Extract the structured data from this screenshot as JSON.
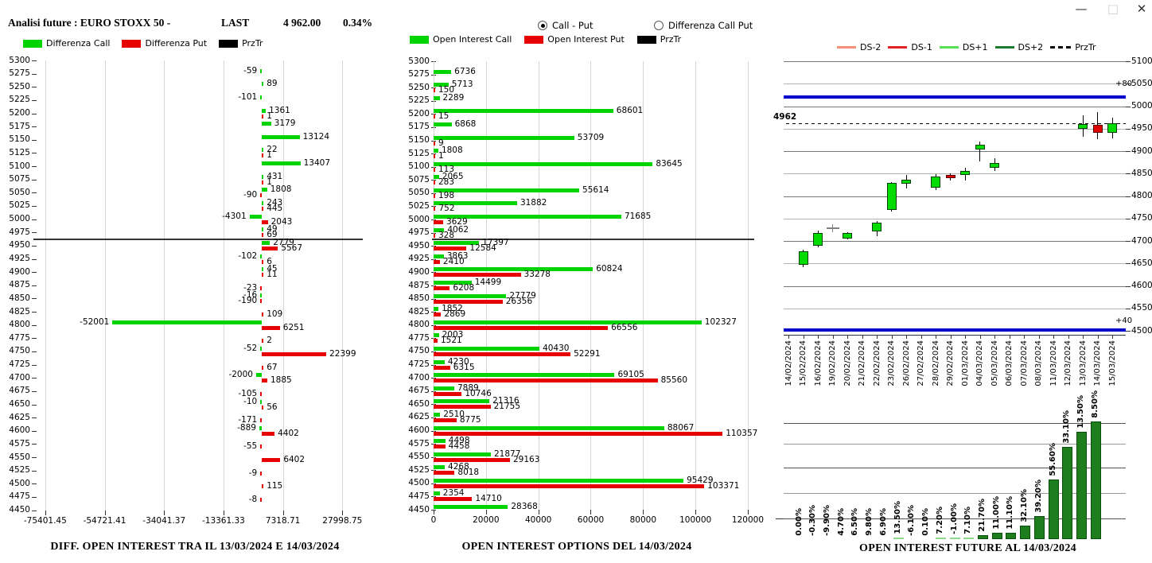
{
  "window": {
    "minimize_glyph": "—",
    "maximize_glyph": "□",
    "close_glyph": "✕"
  },
  "header": {
    "title": "Analisi future : EURO STOXX 50 -",
    "last_label": "LAST",
    "last_value": "4 962.00",
    "change_pct": "0.34%"
  },
  "view_options": {
    "options": [
      {
        "label": "Call - Put",
        "selected": true
      },
      {
        "label": "Differenza Call Put",
        "selected": false
      }
    ]
  },
  "colors": {
    "call_green": "#00d400",
    "put_red": "#e60000",
    "przt_black": "#000000",
    "future_bar_green": "#1e7e1e",
    "future_bar_border": "#0b4d0b",
    "future_bar_small_green": "#8fd98f",
    "blue_level_line": "#0000cc",
    "ds_minus2": "#f4907a",
    "ds_minus1": "#e02222",
    "ds_plus1": "#55e055",
    "ds_plus2": "#1e7a2e",
    "candle_up": "#00dc00",
    "candle_down": "#dd0000",
    "doji_gray": "#808080"
  },
  "chart_data": [
    {
      "id": "diff_open_interest",
      "type": "bar",
      "orientation": "horizontal",
      "title": "DIFF. OPEN INTEREST TRA IL 13/03/2024 E 14/03/2024",
      "legend": [
        {
          "label": "Differenza Call",
          "color": "#00d400"
        },
        {
          "label": "Differenza Put",
          "color": "#e60000"
        },
        {
          "label": "PrzTr",
          "color": "#000000"
        }
      ],
      "y_max": 5300,
      "y_min": 4450,
      "y_step": 25,
      "przt": 4962,
      "x_ticks": [
        "-75401.45",
        "-54721.41",
        "-34041.37",
        "-13361.33",
        "7318.71",
        "27998.75"
      ],
      "rows": [
        {
          "strike": 5275,
          "call": -59
        },
        {
          "strike": 5250,
          "call": 89
        },
        {
          "strike": 5225,
          "call": -101
        },
        {
          "strike": 5200,
          "call": 1361,
          "put": 1
        },
        {
          "strike": 5175,
          "call": 3179
        },
        {
          "strike": 5150,
          "call": 13124
        },
        {
          "strike": 5125,
          "call": 22,
          "put": 1
        },
        {
          "strike": 5100,
          "call": 13407
        },
        {
          "strike": 5075,
          "call": 431,
          "put": 1
        },
        {
          "strike": 5050,
          "call": 1808,
          "put": -90
        },
        {
          "strike": 5025,
          "call": 243,
          "put": 445
        },
        {
          "strike": 5000,
          "call": -4301,
          "put": 2043
        },
        {
          "strike": 4975,
          "call": 49,
          "put": 69
        },
        {
          "strike": 4950,
          "call": 2779,
          "put": 5567
        },
        {
          "strike": 4925,
          "call": -102,
          "put": 6
        },
        {
          "strike": 4900,
          "call": 45,
          "put": 11
        },
        {
          "strike": 4875,
          "put": -23
        },
        {
          "strike": 4850,
          "call": -16,
          "put": -190
        },
        {
          "strike": 4825,
          "put": 109
        },
        {
          "strike": 4800,
          "call": -52001,
          "put": 6251
        },
        {
          "strike": 4775,
          "put": 2
        },
        {
          "strike": 4750,
          "call": -52,
          "put": 22399
        },
        {
          "strike": 4725,
          "put": 67
        },
        {
          "strike": 4700,
          "call": -2000,
          "put": 1885
        },
        {
          "strike": 4675,
          "put": -105
        },
        {
          "strike": 4650,
          "call": -10,
          "put": 56
        },
        {
          "strike": 4625,
          "put": -171
        },
        {
          "strike": 4600,
          "call": -889,
          "put": 4402
        },
        {
          "strike": 4575,
          "put": -55
        },
        {
          "strike": 4550,
          "put": 6402
        },
        {
          "strike": 4525,
          "put": -9
        },
        {
          "strike": 4500,
          "put": 115
        },
        {
          "strike": 4475,
          "put": -8
        }
      ]
    },
    {
      "id": "open_interest_options",
      "type": "bar",
      "orientation": "horizontal",
      "title": "OPEN INTEREST OPTIONS DEL 14/03/2024",
      "legend": [
        {
          "label": "Open Interest Call",
          "color": "#00d400"
        },
        {
          "label": "Open Interest Put",
          "color": "#e60000"
        },
        {
          "label": "PrzTr",
          "color": "#000000"
        }
      ],
      "y_max": 5300,
      "y_min": 4450,
      "y_step": 25,
      "przt": 4962,
      "x_ticks": [
        "0",
        "20000",
        "40000",
        "60000",
        "80000",
        "100000",
        "120000"
      ],
      "rows": [
        {
          "strike": 5275,
          "call": 6736
        },
        {
          "strike": 5250,
          "call": 5713,
          "put": 150
        },
        {
          "strike": 5225,
          "call": 2289
        },
        {
          "strike": 5200,
          "call": 68601,
          "put": 15
        },
        {
          "strike": 5175,
          "call": 6868
        },
        {
          "strike": 5150,
          "call": 53709,
          "put": 9
        },
        {
          "strike": 5125,
          "call": 1808,
          "put": 1
        },
        {
          "strike": 5100,
          "call": 83645,
          "put": 113
        },
        {
          "strike": 5075,
          "call": 2065,
          "put": 283
        },
        {
          "strike": 5050,
          "call": 55614,
          "put": 198
        },
        {
          "strike": 5025,
          "call": 31882,
          "put": 752
        },
        {
          "strike": 5000,
          "call": 71685,
          "put": 3629
        },
        {
          "strike": 4975,
          "call": 4062,
          "put": 328
        },
        {
          "strike": 4950,
          "call": 17397,
          "put": 12584
        },
        {
          "strike": 4925,
          "call": 3863,
          "put": 2410
        },
        {
          "strike": 4900,
          "call": 60824,
          "put": 33278
        },
        {
          "strike": 4875,
          "call": 14499,
          "put": 6208
        },
        {
          "strike": 4850,
          "call": 27779,
          "put": 26356
        },
        {
          "strike": 4825,
          "call": 1852,
          "put": 2869
        },
        {
          "strike": 4800,
          "call": 102327,
          "put": 66556
        },
        {
          "strike": 4775,
          "call": 2003,
          "put": 1521
        },
        {
          "strike": 4750,
          "call": 40430,
          "put": 52291
        },
        {
          "strike": 4725,
          "call": 4230,
          "put": 6315
        },
        {
          "strike": 4700,
          "call": 69105,
          "put": 85560
        },
        {
          "strike": 4675,
          "call": 7889,
          "put": 10746
        },
        {
          "strike": 4650,
          "call": 21316,
          "put": 21755
        },
        {
          "strike": 4625,
          "call": 2510,
          "put": 8775
        },
        {
          "strike": 4600,
          "call": 88067,
          "put": 110357
        },
        {
          "strike": 4575,
          "call": 4498,
          "put": 4458
        },
        {
          "strike": 4550,
          "call": 21877,
          "put": 29163
        },
        {
          "strike": 4525,
          "call": 4268,
          "put": 8018
        },
        {
          "strike": 4500,
          "call": 95429,
          "put": 103371
        },
        {
          "strike": 4475,
          "call": 2354,
          "put": 14710
        },
        {
          "strike": 4450,
          "call": 28368
        }
      ]
    },
    {
      "id": "future_candles",
      "type": "candlestick",
      "legend": [
        {
          "label": "DS-2",
          "color": "#f4907a"
        },
        {
          "label": "DS-1",
          "color": "#e02222"
        },
        {
          "label": "DS+1",
          "color": "#55e055"
        },
        {
          "label": "DS+2",
          "color": "#1e7a2e"
        },
        {
          "label": "PrzTr",
          "color": "#000000",
          "dashed": true
        }
      ],
      "y_max": 5100,
      "y_min": 4500,
      "y_step": 50,
      "last_price": 4962,
      "blue_lines": [
        {
          "label": "+80",
          "value": 5020
        },
        {
          "label": "+40",
          "value": 4502
        }
      ],
      "dates": [
        "14/02/2024",
        "15/02/2024",
        "16/02/2024",
        "19/02/2024",
        "20/02/2024",
        "21/02/2024",
        "22/02/2024",
        "23/02/2024",
        "26/02/2024",
        "27/02/2024",
        "28/02/2024",
        "29/02/2024",
        "01/03/2024",
        "04/03/2024",
        "05/03/2024",
        "06/03/2024",
        "07/03/2024",
        "08/03/2024",
        "11/03/2024",
        "12/03/2024",
        "13/03/2024",
        "14/03/2024",
        "15/03/2024"
      ],
      "candles": [
        {
          "date": "15/02/2024",
          "open": 4647,
          "close": 4677,
          "low": 4642,
          "high": 4681
        },
        {
          "date": "16/02/2024",
          "open": 4690,
          "close": 4717,
          "low": 4686,
          "high": 4723
        },
        {
          "date": "19/02/2024",
          "type": "doji",
          "value": 4728,
          "low": 4719,
          "high": 4737
        },
        {
          "date": "20/02/2024",
          "open": 4706,
          "close": 4717,
          "low": 4704,
          "high": 4719
        },
        {
          "date": "22/02/2024",
          "open": 4722,
          "close": 4741,
          "low": 4710,
          "high": 4744
        },
        {
          "date": "23/02/2024",
          "open": 4769,
          "close": 4829,
          "low": 4766,
          "high": 4831
        },
        {
          "date": "26/02/2024",
          "open": 4827,
          "close": 4836,
          "low": 4817,
          "high": 4847
        },
        {
          "date": "28/02/2024",
          "open": 4819,
          "close": 4843,
          "low": 4813,
          "high": 4849
        },
        {
          "date": "29/02/2024",
          "open": 4847,
          "close": 4839,
          "low": 4835,
          "high": 4850
        },
        {
          "date": "01/03/2024",
          "open": 4847,
          "close": 4856,
          "low": 4834,
          "high": 4863
        },
        {
          "date": "04/03/2024",
          "open": 4903,
          "close": 4915,
          "low": 4877,
          "high": 4921
        },
        {
          "date": "05/03/2024",
          "open": 4862,
          "close": 4874,
          "low": 4855,
          "high": 4884
        },
        {
          "date": "13/03/2024",
          "open": 4950,
          "close": 4961,
          "low": 4932,
          "high": 4980
        },
        {
          "date": "14/03/2024",
          "open": 4959,
          "close": 4941,
          "low": 4926,
          "high": 4986
        },
        {
          "date": "15/03/2024",
          "open": 4941,
          "close": 4962,
          "low": 4929,
          "high": 4974
        }
      ]
    },
    {
      "id": "open_interest_future",
      "type": "bar",
      "title": "OPEN INTEREST FUTURE AL 14/03/2024",
      "bars": [
        {
          "label": "0.00%",
          "rel": 0
        },
        {
          "label": "-0.30%",
          "rel": 0
        },
        {
          "label": "-9.90%",
          "rel": 0
        },
        {
          "label": "4.70%",
          "rel": 0
        },
        {
          "label": "6.50%",
          "rel": 0
        },
        {
          "label": "9.80%",
          "rel": 0
        },
        {
          "label": "6.90%",
          "rel": 0
        },
        {
          "label": "13.50%",
          "rel": 1.4,
          "small": true
        },
        {
          "label": "-6.10%",
          "rel": 0
        },
        {
          "label": "0.10%",
          "rel": 0
        },
        {
          "label": "7.20%",
          "rel": 1.4,
          "small": true
        },
        {
          "label": "-1.00%",
          "rel": 1.4,
          "small": true
        },
        {
          "label": "7.10%",
          "rel": 1.4,
          "small": true
        },
        {
          "label": "21.70%",
          "rel": 3.4
        },
        {
          "label": "11.00%",
          "rel": 5.4
        },
        {
          "label": "11.10%",
          "rel": 5.6
        },
        {
          "label": "32.10%",
          "rel": 11.5
        },
        {
          "label": "39.20%",
          "rel": 19.6
        },
        {
          "label": "55.60%",
          "rel": 50.7
        },
        {
          "label": "33.10%",
          "rel": 78.4
        },
        {
          "label": "13.50%",
          "rel": 91.2
        },
        {
          "label": "8.50%",
          "rel": 100
        }
      ]
    }
  ]
}
